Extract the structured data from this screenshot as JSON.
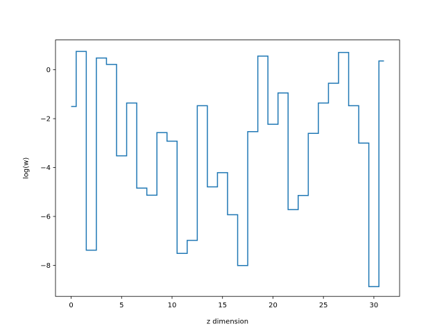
{
  "chart_data": {
    "type": "line",
    "drawstyle": "steps-mid",
    "title": "",
    "xlabel": "z dimension",
    "ylabel": "log(w)",
    "xlim": [
      -1.55,
      32.55
    ],
    "ylim": [
      -9.27,
      1.22
    ],
    "xticks": [
      0,
      5,
      10,
      15,
      20,
      25,
      30
    ],
    "xtick_labels": [
      "0",
      "5",
      "10",
      "15",
      "20",
      "25",
      "30"
    ],
    "yticks": [
      0,
      -2,
      -4,
      -6,
      -8
    ],
    "ytick_labels": [
      "0",
      "−2",
      "−4",
      "−6",
      "−8"
    ],
    "grid": false,
    "legend": "none",
    "colors": {
      "line": "#1f77b4",
      "axes": "#000000",
      "background": "#ffffff"
    },
    "series": [
      {
        "x": [
          0,
          1,
          2,
          3,
          4,
          5,
          6,
          7,
          8,
          9,
          10,
          11,
          12,
          13,
          14,
          15,
          16,
          17,
          18,
          19,
          20,
          21,
          22,
          23,
          24,
          25,
          26,
          27,
          28,
          29,
          30,
          31
        ],
        "values": [
          -1.5,
          0.75,
          -7.38,
          0.48,
          0.22,
          -3.52,
          -1.36,
          -4.84,
          -5.13,
          -2.57,
          -2.92,
          -7.51,
          -6.98,
          -1.47,
          -4.79,
          -4.21,
          -5.93,
          -8.01,
          -2.53,
          0.56,
          -2.23,
          -0.95,
          -5.72,
          -5.14,
          -2.6,
          -1.36,
          -0.55,
          0.71,
          -1.47,
          -3.0,
          -8.87,
          0.36
        ]
      }
    ]
  }
}
